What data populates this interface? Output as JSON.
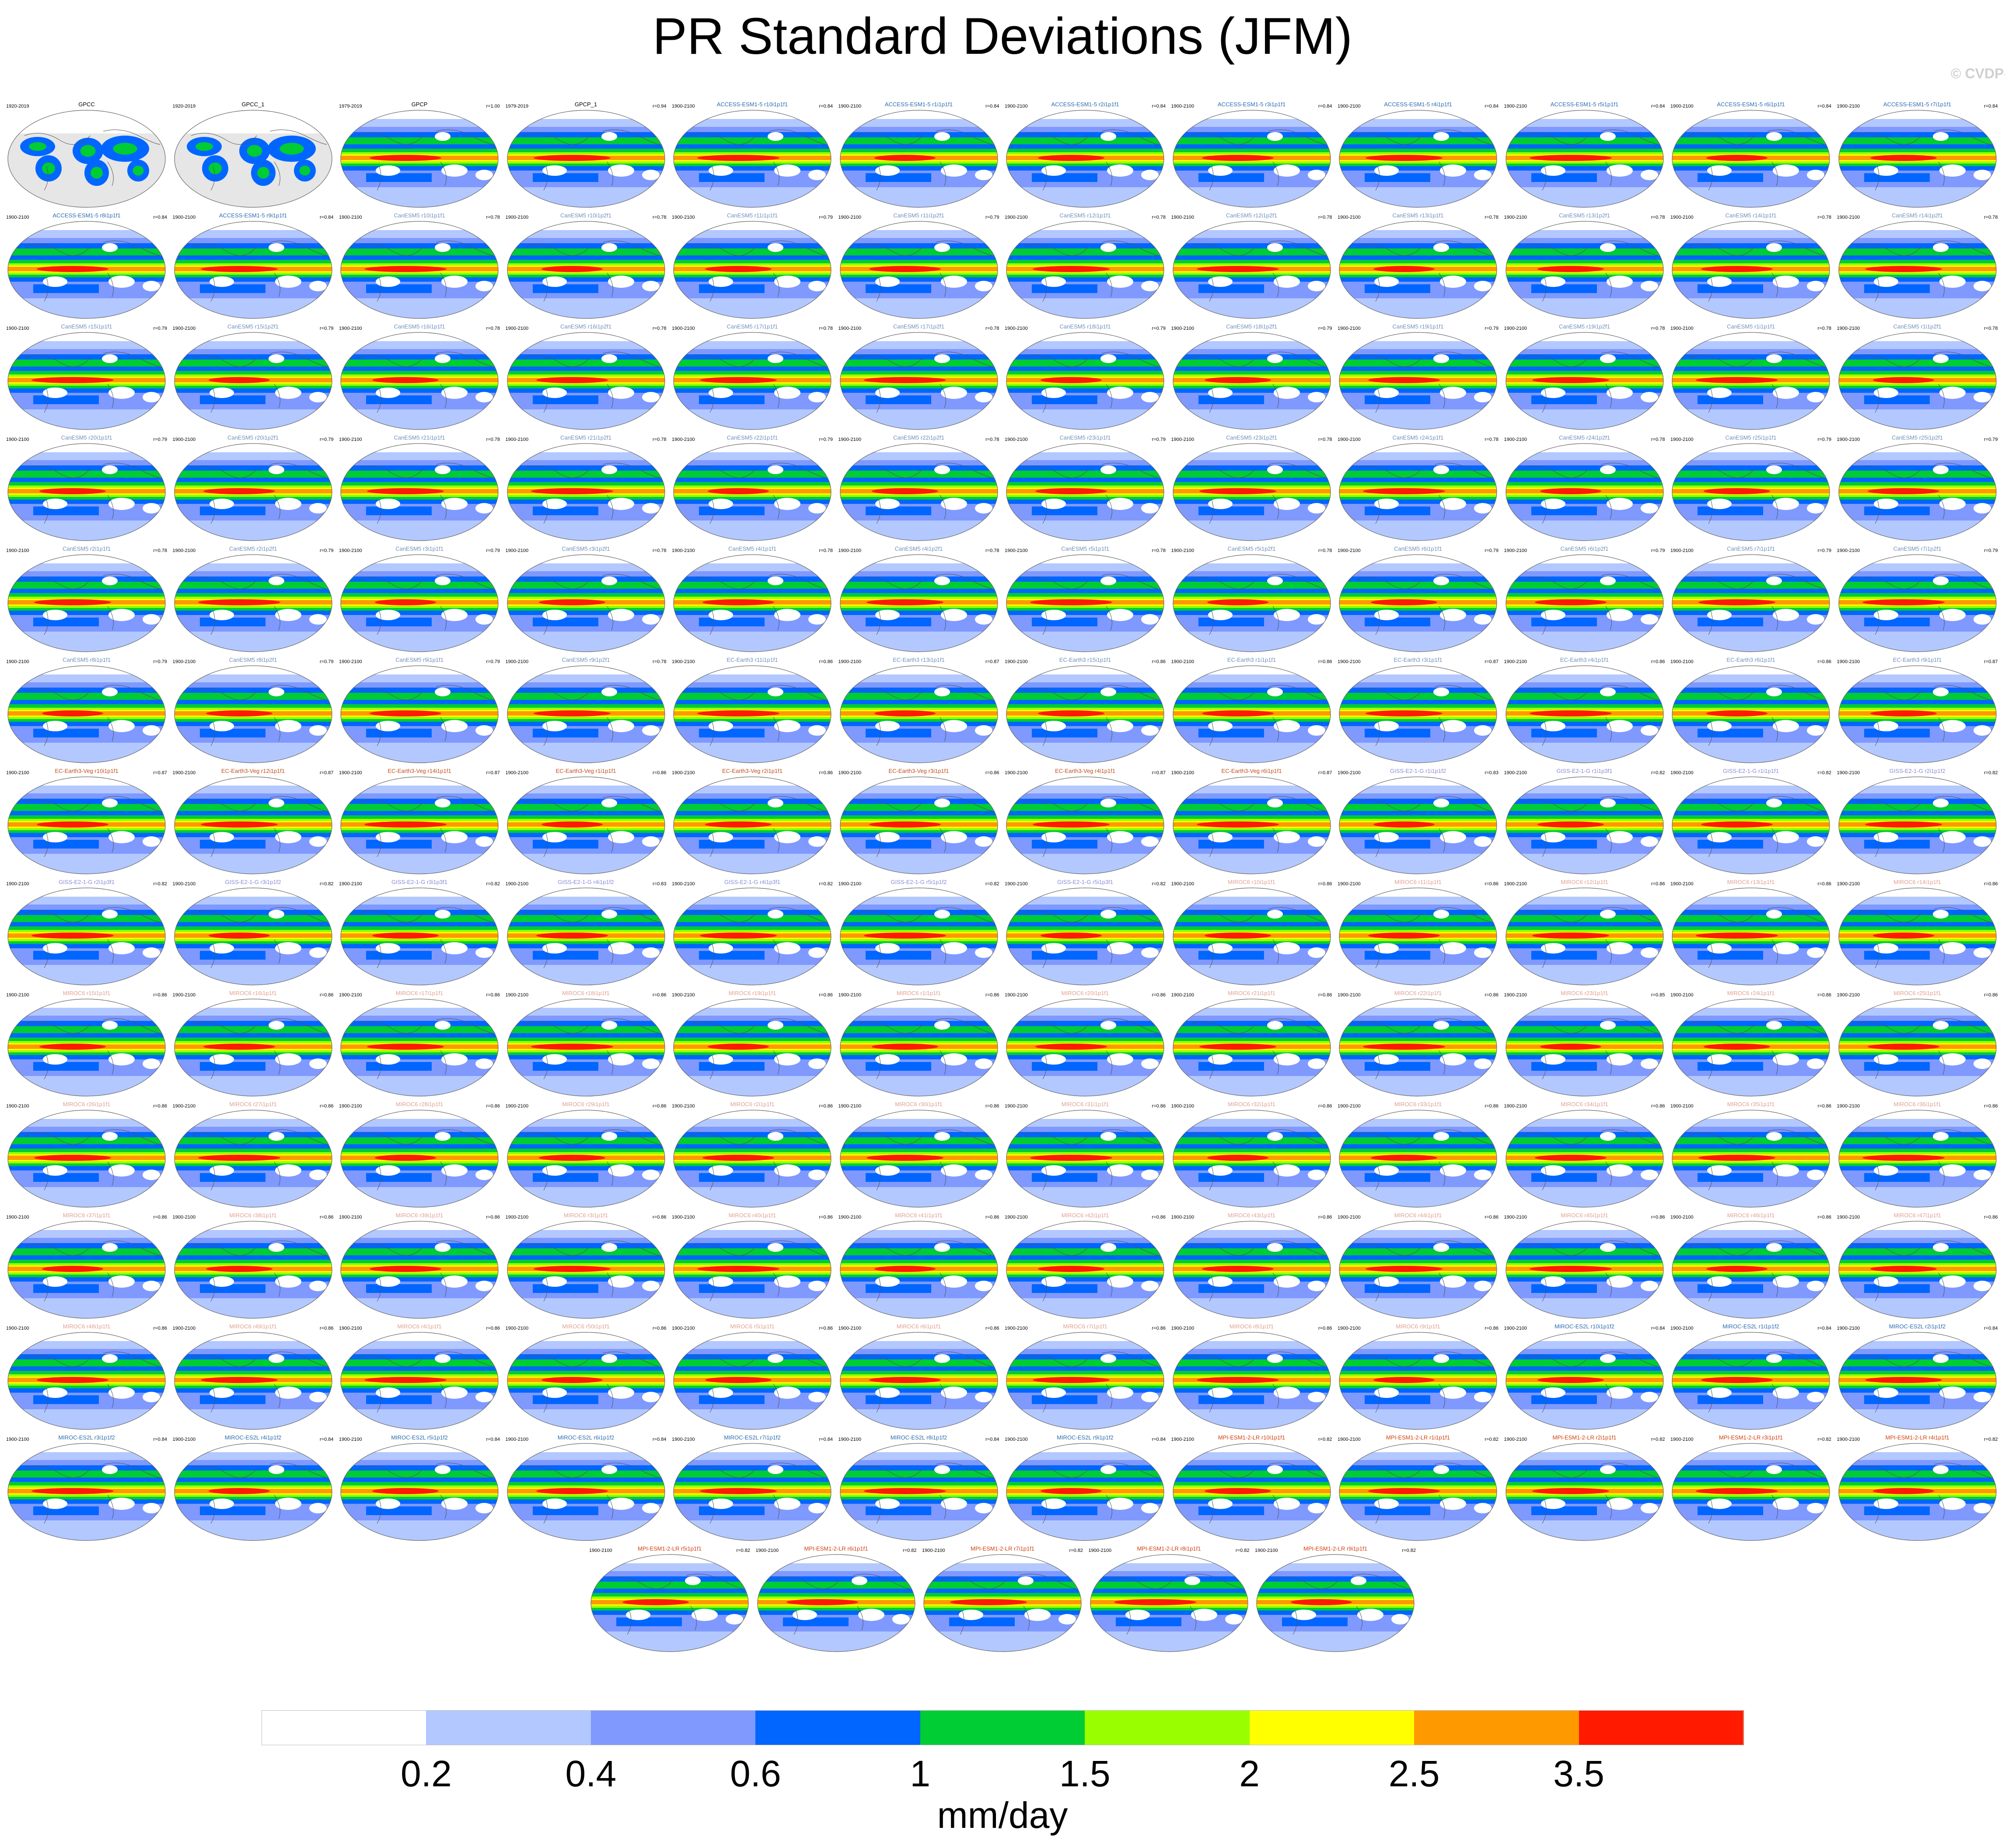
{
  "title": "PR Standard Deviations (JFM)",
  "credit": "© CVDP-LE",
  "colorbar": {
    "units": "mm/day",
    "ticks": [
      "0.2",
      "0.4",
      "0.6",
      "1",
      "1.5",
      "2",
      "2.5",
      "3.5"
    ],
    "colors": [
      "#ffffff",
      "#b3c8ff",
      "#7f99ff",
      "#0066ff",
      "#00cc33",
      "#99ff00",
      "#ffff00",
      "#ff9900",
      "#ff1a00"
    ]
  },
  "panel_header": {
    "obs_period": "1920-2019",
    "gpcp_period": "1979-2019",
    "model_period": "1900-2100",
    "correlation_gpcp": "r=1.00"
  },
  "panels": [
    {
      "name": "GPCC",
      "r": "",
      "color": "#000000"
    },
    {
      "name": "GPCC_1",
      "r": "",
      "color": "#000000"
    },
    {
      "name": "GPCP",
      "r": "r=1.00",
      "color": "#000000"
    },
    {
      "name": "GPCP_1",
      "r": "r=0.94",
      "color": "#000000"
    },
    {
      "name": "ACCESS-ESM1-5 r10i1p1f1",
      "r": "r=0.84",
      "color": "#2b6cb0"
    },
    {
      "name": "ACCESS-ESM1-5 r1i1p1f1",
      "r": "r=0.84",
      "color": "#2b6cb0"
    },
    {
      "name": "ACCESS-ESM1-5 r2i1p1f1",
      "r": "r=0.84",
      "color": "#2b6cb0"
    },
    {
      "name": "ACCESS-ESM1-5 r3i1p1f1",
      "r": "r=0.84",
      "color": "#2b6cb0"
    },
    {
      "name": "ACCESS-ESM1-5 r4i1p1f1",
      "r": "r=0.84",
      "color": "#2b6cb0"
    },
    {
      "name": "ACCESS-ESM1-5 r5i1p1f1",
      "r": "r=0.84",
      "color": "#2b6cb0"
    },
    {
      "name": "ACCESS-ESM1-5 r6i1p1f1",
      "r": "r=0.84",
      "color": "#2b6cb0"
    },
    {
      "name": "ACCESS-ESM1-5 r7i1p1f1",
      "r": "r=0.84",
      "color": "#2b6cb0"
    },
    {
      "name": "ACCESS-ESM1-5 r8i1p1f1",
      "r": "r=0.84",
      "color": "#2b6cb0"
    },
    {
      "name": "ACCESS-ESM1-5 r9i1p1f1",
      "r": "r=0.84",
      "color": "#2b6cb0"
    },
    {
      "name": "CanESM5 r10i1p1f1",
      "r": "r=0.78",
      "color": "#6f8fbf"
    },
    {
      "name": "CanESM5 r10i1p2f1",
      "r": "r=0.78",
      "color": "#6f8fbf"
    },
    {
      "name": "CanESM5 r11i1p1f1",
      "r": "r=0.79",
      "color": "#6f8fbf"
    },
    {
      "name": "CanESM5 r11i1p2f1",
      "r": "r=0.79",
      "color": "#6f8fbf"
    },
    {
      "name": "CanESM5 r12i1p1f1",
      "r": "r=0.78",
      "color": "#6f8fbf"
    },
    {
      "name": "CanESM5 r12i1p2f1",
      "r": "r=0.78",
      "color": "#6f8fbf"
    },
    {
      "name": "CanESM5 r13i1p1f1",
      "r": "r=0.78",
      "color": "#6f8fbf"
    },
    {
      "name": "CanESM5 r13i1p2f1",
      "r": "r=0.78",
      "color": "#6f8fbf"
    },
    {
      "name": "CanESM5 r14i1p1f1",
      "r": "r=0.78",
      "color": "#6f8fbf"
    },
    {
      "name": "CanESM5 r14i1p2f1",
      "r": "r=0.78",
      "color": "#6f8fbf"
    },
    {
      "name": "CanESM5 r15i1p1f1",
      "r": "r=0.79",
      "color": "#6f8fbf"
    },
    {
      "name": "CanESM5 r15i1p2f1",
      "r": "r=0.79",
      "color": "#6f8fbf"
    },
    {
      "name": "CanESM5 r16i1p1f1",
      "r": "r=0.78",
      "color": "#6f8fbf"
    },
    {
      "name": "CanESM5 r16i1p2f1",
      "r": "r=0.78",
      "color": "#6f8fbf"
    },
    {
      "name": "CanESM5 r17i1p1f1",
      "r": "r=0.78",
      "color": "#6f8fbf"
    },
    {
      "name": "CanESM5 r17i1p2f1",
      "r": "r=0.78",
      "color": "#6f8fbf"
    },
    {
      "name": "CanESM5 r18i1p1f1",
      "r": "r=0.79",
      "color": "#6f8fbf"
    },
    {
      "name": "CanESM5 r18i1p2f1",
      "r": "r=0.79",
      "color": "#6f8fbf"
    },
    {
      "name": "CanESM5 r19i1p1f1",
      "r": "r=0.79",
      "color": "#6f8fbf"
    },
    {
      "name": "CanESM5 r19i1p2f1",
      "r": "r=0.78",
      "color": "#6f8fbf"
    },
    {
      "name": "CanESM5 r1i1p1f1",
      "r": "r=0.78",
      "color": "#6f8fbf"
    },
    {
      "name": "CanESM5 r1i1p2f1",
      "r": "r=0.78",
      "color": "#6f8fbf"
    },
    {
      "name": "CanESM5 r20i1p1f1",
      "r": "r=0.79",
      "color": "#6f8fbf"
    },
    {
      "name": "CanESM5 r20i1p2f1",
      "r": "r=0.79",
      "color": "#6f8fbf"
    },
    {
      "name": "CanESM5 r21i1p1f1",
      "r": "r=0.78",
      "color": "#6f8fbf"
    },
    {
      "name": "CanESM5 r21i1p2f1",
      "r": "r=0.78",
      "color": "#6f8fbf"
    },
    {
      "name": "CanESM5 r22i1p1f1",
      "r": "r=0.79",
      "color": "#6f8fbf"
    },
    {
      "name": "CanESM5 r22i1p2f1",
      "r": "r=0.78",
      "color": "#6f8fbf"
    },
    {
      "name": "CanESM5 r23i1p1f1",
      "r": "r=0.79",
      "color": "#6f8fbf"
    },
    {
      "name": "CanESM5 r23i1p2f1",
      "r": "r=0.78",
      "color": "#6f8fbf"
    },
    {
      "name": "CanESM5 r24i1p1f1",
      "r": "r=0.78",
      "color": "#6f8fbf"
    },
    {
      "name": "CanESM5 r24i1p2f1",
      "r": "r=0.78",
      "color": "#6f8fbf"
    },
    {
      "name": "CanESM5 r25i1p1f1",
      "r": "r=0.79",
      "color": "#6f8fbf"
    },
    {
      "name": "CanESM5 r25i1p2f1",
      "r": "r=0.79",
      "color": "#6f8fbf"
    },
    {
      "name": "CanESM5 r2i1p1f1",
      "r": "r=0.78",
      "color": "#6f8fbf"
    },
    {
      "name": "CanESM5 r2i1p2f1",
      "r": "r=0.79",
      "color": "#6f8fbf"
    },
    {
      "name": "CanESM5 r3i1p1f1",
      "r": "r=0.79",
      "color": "#6f8fbf"
    },
    {
      "name": "CanESM5 r3i1p2f1",
      "r": "r=0.78",
      "color": "#6f8fbf"
    },
    {
      "name": "CanESM5 r4i1p1f1",
      "r": "r=0.78",
      "color": "#6f8fbf"
    },
    {
      "name": "CanESM5 r4i1p2f1",
      "r": "r=0.78",
      "color": "#6f8fbf"
    },
    {
      "name": "CanESM5 r5i1p1f1",
      "r": "r=0.78",
      "color": "#6f8fbf"
    },
    {
      "name": "CanESM5 r5i1p2f1",
      "r": "r=0.78",
      "color": "#6f8fbf"
    },
    {
      "name": "CanESM5 r6i1p1f1",
      "r": "r=0.79",
      "color": "#6f8fbf"
    },
    {
      "name": "CanESM5 r6i1p2f1",
      "r": "r=0.79",
      "color": "#6f8fbf"
    },
    {
      "name": "CanESM5 r7i1p1f1",
      "r": "r=0.79",
      "color": "#6f8fbf"
    },
    {
      "name": "CanESM5 r7i1p2f1",
      "r": "r=0.79",
      "color": "#6f8fbf"
    },
    {
      "name": "CanESM5 r8i1p1f1",
      "r": "r=0.79",
      "color": "#6f8fbf"
    },
    {
      "name": "CanESM5 r8i1p2f1",
      "r": "r=0.79",
      "color": "#6f8fbf"
    },
    {
      "name": "CanESM5 r9i1p1f1",
      "r": "r=0.79",
      "color": "#6f8fbf"
    },
    {
      "name": "CanESM5 r9i1p2f1",
      "r": "r=0.78",
      "color": "#6f8fbf"
    },
    {
      "name": "EC-Earth3 r11i1p1f1",
      "r": "r=0.86",
      "color": "#6f8fbf"
    },
    {
      "name": "EC-Earth3 r13i1p1f1",
      "r": "r=0.87",
      "color": "#6f8fbf"
    },
    {
      "name": "EC-Earth3 r15i1p1f1",
      "r": "r=0.86",
      "color": "#6f8fbf"
    },
    {
      "name": "EC-Earth3 r1i1p1f1",
      "r": "r=0.86",
      "color": "#6f8fbf"
    },
    {
      "name": "EC-Earth3 r3i1p1f1",
      "r": "r=0.87",
      "color": "#6f8fbf"
    },
    {
      "name": "EC-Earth3 r4i1p1f1",
      "r": "r=0.86",
      "color": "#6f8fbf"
    },
    {
      "name": "EC-Earth3 r6i1p1f1",
      "r": "r=0.86",
      "color": "#6f8fbf"
    },
    {
      "name": "EC-Earth3 r9i1p1f1",
      "r": "r=0.87",
      "color": "#6f8fbf"
    },
    {
      "name": "EC-Earth3-Veg r10i1p1f1",
      "r": "r=0.87",
      "color": "#c0501a"
    },
    {
      "name": "EC-Earth3-Veg r12i1p1f1",
      "r": "r=0.87",
      "color": "#c0501a"
    },
    {
      "name": "EC-Earth3-Veg r14i1p1f1",
      "r": "r=0.87",
      "color": "#c0501a"
    },
    {
      "name": "EC-Earth3-Veg r1i1p1f1",
      "r": "r=0.86",
      "color": "#c0501a"
    },
    {
      "name": "EC-Earth3-Veg r2i1p1f1",
      "r": "r=0.86",
      "color": "#c0501a"
    },
    {
      "name": "EC-Earth3-Veg r3i1p1f1",
      "r": "r=0.86",
      "color": "#c0501a"
    },
    {
      "name": "EC-Earth3-Veg r4i1p1f1",
      "r": "r=0.87",
      "color": "#c0501a"
    },
    {
      "name": "EC-Earth3-Veg r6i1p1f1",
      "r": "r=0.87",
      "color": "#c0501a"
    },
    {
      "name": "GISS-E2-1-G r1i1p1f2",
      "r": "r=0.83",
      "color": "#8a8ad8"
    },
    {
      "name": "GISS-E2-1-G r1i1p3f1",
      "r": "r=0.82",
      "color": "#8a8ad8"
    },
    {
      "name": "GISS-E2-1-G r1i1p1f1",
      "r": "r=0.82",
      "color": "#8a8ad8"
    },
    {
      "name": "GISS-E2-1-G r2i1p1f2",
      "r": "r=0.82",
      "color": "#8a8ad8"
    },
    {
      "name": "GISS-E2-1-G r2i1p3f1",
      "r": "r=0.82",
      "color": "#8a8ad8"
    },
    {
      "name": "GISS-E2-1-G r3i1p1f2",
      "r": "r=0.82",
      "color": "#8a8ad8"
    },
    {
      "name": "GISS-E2-1-G r3i1p3f1",
      "r": "r=0.82",
      "color": "#8a8ad8"
    },
    {
      "name": "GISS-E2-1-G r4i1p1f2",
      "r": "r=0.83",
      "color": "#8a8ad8"
    },
    {
      "name": "GISS-E2-1-G r4i1p3f1",
      "r": "r=0.82",
      "color": "#8a8ad8"
    },
    {
      "name": "GISS-E2-1-G r5i1p1f2",
      "r": "r=0.82",
      "color": "#8a8ad8"
    },
    {
      "name": "GISS-E2-1-G r5i1p3f1",
      "r": "r=0.82",
      "color": "#8a8ad8"
    },
    {
      "name": "MIROC6 r10i1p1f1",
      "r": "r=0.86",
      "color": "#e0a090"
    },
    {
      "name": "MIROC6 r11i1p1f1",
      "r": "r=0.86",
      "color": "#e0a090"
    },
    {
      "name": "MIROC6 r12i1p1f1",
      "r": "r=0.86",
      "color": "#e0a090"
    },
    {
      "name": "MIROC6 r13i1p1f1",
      "r": "r=0.86",
      "color": "#e0a090"
    },
    {
      "name": "MIROC6 r14i1p1f1",
      "r": "r=0.86",
      "color": "#e0a090"
    },
    {
      "name": "MIROC6 r15i1p1f1",
      "r": "r=0.86",
      "color": "#e0a090"
    },
    {
      "name": "MIROC6 r16i1p1f1",
      "r": "r=0.86",
      "color": "#e0a090"
    },
    {
      "name": "MIROC6 r17i1p1f1",
      "r": "r=0.86",
      "color": "#e0a090"
    },
    {
      "name": "MIROC6 r18i1p1f1",
      "r": "r=0.86",
      "color": "#e0a090"
    },
    {
      "name": "MIROC6 r19i1p1f1",
      "r": "r=0.86",
      "color": "#e0a090"
    },
    {
      "name": "MIROC6 r1i1p1f1",
      "r": "r=0.86",
      "color": "#e0a090"
    },
    {
      "name": "MIROC6 r20i1p1f1",
      "r": "r=0.86",
      "color": "#e0a090"
    },
    {
      "name": "MIROC6 r21i1p1f1",
      "r": "r=0.86",
      "color": "#e0a090"
    },
    {
      "name": "MIROC6 r22i1p1f1",
      "r": "r=0.86",
      "color": "#e0a090"
    },
    {
      "name": "MIROC6 r23i1p1f1",
      "r": "r=0.85",
      "color": "#e0a090"
    },
    {
      "name": "MIROC6 r24i1p1f1",
      "r": "r=0.86",
      "color": "#e0a090"
    },
    {
      "name": "MIROC6 r25i1p1f1",
      "r": "r=0.86",
      "color": "#e0a090"
    },
    {
      "name": "MIROC6 r26i1p1f1",
      "r": "r=0.86",
      "color": "#e0a090"
    },
    {
      "name": "MIROC6 r27i1p1f1",
      "r": "r=0.86",
      "color": "#e0a090"
    },
    {
      "name": "MIROC6 r28i1p1f1",
      "r": "r=0.86",
      "color": "#e0a090"
    },
    {
      "name": "MIROC6 r29i1p1f1",
      "r": "r=0.86",
      "color": "#e0a090"
    },
    {
      "name": "MIROC6 r2i1p1f1",
      "r": "r=0.86",
      "color": "#e0a090"
    },
    {
      "name": "MIROC6 r30i1p1f1",
      "r": "r=0.86",
      "color": "#e0a090"
    },
    {
      "name": "MIROC6 r31i1p1f1",
      "r": "r=0.86",
      "color": "#e0a090"
    },
    {
      "name": "MIROC6 r32i1p1f1",
      "r": "r=0.86",
      "color": "#e0a090"
    },
    {
      "name": "MIROC6 r33i1p1f1",
      "r": "r=0.86",
      "color": "#e0a090"
    },
    {
      "name": "MIROC6 r34i1p1f1",
      "r": "r=0.86",
      "color": "#e0a090"
    },
    {
      "name": "MIROC6 r35i1p1f1",
      "r": "r=0.86",
      "color": "#e0a090"
    },
    {
      "name": "MIROC6 r36i1p1f1",
      "r": "r=0.86",
      "color": "#e0a090"
    },
    {
      "name": "MIROC6 r37i1p1f1",
      "r": "r=0.86",
      "color": "#e0a090"
    },
    {
      "name": "MIROC6 r38i1p1f1",
      "r": "r=0.86",
      "color": "#e0a090"
    },
    {
      "name": "MIROC6 r39i1p1f1",
      "r": "r=0.86",
      "color": "#e0a090"
    },
    {
      "name": "MIROC6 r3i1p1f1",
      "r": "r=0.86",
      "color": "#e0a090"
    },
    {
      "name": "MIROC6 r40i1p1f1",
      "r": "r=0.86",
      "color": "#e0a090"
    },
    {
      "name": "MIROC6 r41i1p1f1",
      "r": "r=0.86",
      "color": "#e0a090"
    },
    {
      "name": "MIROC6 r42i1p1f1",
      "r": "r=0.86",
      "color": "#e0a090"
    },
    {
      "name": "MIROC6 r43i1p1f1",
      "r": "r=0.86",
      "color": "#e0a090"
    },
    {
      "name": "MIROC6 r44i1p1f1",
      "r": "r=0.86",
      "color": "#e0a090"
    },
    {
      "name": "MIROC6 r45i1p1f1",
      "r": "r=0.86",
      "color": "#e0a090"
    },
    {
      "name": "MIROC6 r46i1p1f1",
      "r": "r=0.86",
      "color": "#e0a090"
    },
    {
      "name": "MIROC6 r47i1p1f1",
      "r": "r=0.86",
      "color": "#e0a090"
    },
    {
      "name": "MIROC6 r48i1p1f1",
      "r": "r=0.86",
      "color": "#e0a090"
    },
    {
      "name": "MIROC6 r49i1p1f1",
      "r": "r=0.86",
      "color": "#e0a090"
    },
    {
      "name": "MIROC6 r4i1p1f1",
      "r": "r=0.86",
      "color": "#e0a090"
    },
    {
      "name": "MIROC6 r50i1p1f1",
      "r": "r=0.86",
      "color": "#e0a090"
    },
    {
      "name": "MIROC6 r5i1p1f1",
      "r": "r=0.86",
      "color": "#e0a090"
    },
    {
      "name": "MIROC6 r6i1p1f1",
      "r": "r=0.86",
      "color": "#e0a090"
    },
    {
      "name": "MIROC6 r7i1p1f1",
      "r": "r=0.86",
      "color": "#e0a090"
    },
    {
      "name": "MIROC6 r8i1p1f1",
      "r": "r=0.86",
      "color": "#e0a090"
    },
    {
      "name": "MIROC6 r9i1p1f1",
      "r": "r=0.86",
      "color": "#e0a090"
    },
    {
      "name": "MIROC-ES2L r10i1p1f2",
      "r": "r=0.84",
      "color": "#2b6cb0"
    },
    {
      "name": "MIROC-ES2L r1i1p1f2",
      "r": "r=0.84",
      "color": "#2b6cb0"
    },
    {
      "name": "MIROC-ES2L r2i1p1f2",
      "r": "r=0.84",
      "color": "#2b6cb0"
    },
    {
      "name": "MIROC-ES2L r3i1p1f2",
      "r": "r=0.84",
      "color": "#2b6cb0"
    },
    {
      "name": "MIROC-ES2L r4i1p1f2",
      "r": "r=0.84",
      "color": "#2b6cb0"
    },
    {
      "name": "MIROC-ES2L r5i1p1f2",
      "r": "r=0.84",
      "color": "#2b6cb0"
    },
    {
      "name": "MIROC-ES2L r6i1p1f2",
      "r": "r=0.84",
      "color": "#2b6cb0"
    },
    {
      "name": "MIROC-ES2L r7i1p1f2",
      "r": "r=0.84",
      "color": "#2b6cb0"
    },
    {
      "name": "MIROC-ES2L r8i1p1f2",
      "r": "r=0.84",
      "color": "#2b6cb0"
    },
    {
      "name": "MIROC-ES2L r9i1p1f2",
      "r": "r=0.84",
      "color": "#2b6cb0"
    },
    {
      "name": "MPI-ESM1-2-LR r10i1p1f1",
      "r": "r=0.82",
      "color": "#d04010"
    },
    {
      "name": "MPI-ESM1-2-LR r1i1p1f1",
      "r": "r=0.82",
      "color": "#d04010"
    },
    {
      "name": "MPI-ESM1-2-LR r2i1p1f1",
      "r": "r=0.82",
      "color": "#d04010"
    },
    {
      "name": "MPI-ESM1-2-LR r3i1p1f1",
      "r": "r=0.82",
      "color": "#d04010"
    },
    {
      "name": "MPI-ESM1-2-LR r4i1p1f1",
      "r": "r=0.82",
      "color": "#d04010"
    },
    {
      "name": "MPI-ESM1-2-LR r5i1p1f1",
      "r": "r=0.82",
      "color": "#d04010"
    },
    {
      "name": "MPI-ESM1-2-LR r6i1p1f1",
      "r": "r=0.82",
      "color": "#d04010"
    },
    {
      "name": "MPI-ESM1-2-LR r7i1p1f1",
      "r": "r=0.82",
      "color": "#d04010"
    },
    {
      "name": "MPI-ESM1-2-LR r8i1p1f1",
      "r": "r=0.82",
      "color": "#d04010"
    },
    {
      "name": "MPI-ESM1-2-LR r9i1p1f1",
      "r": "r=0.82",
      "color": "#d04010"
    }
  ]
}
